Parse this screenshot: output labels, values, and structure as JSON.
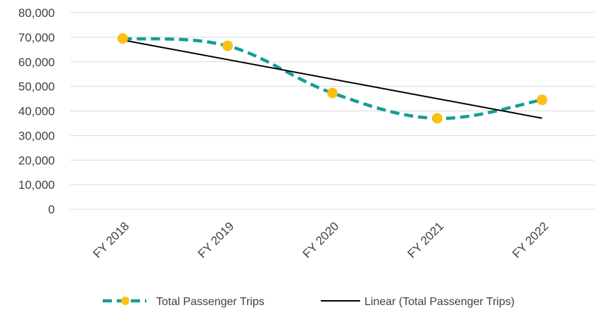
{
  "chart_data": {
    "type": "line",
    "categories": [
      "FY 2018",
      "FY 2019",
      "FY 2020",
      "FY 2021",
      "FY 2022"
    ],
    "series": [
      {
        "name": "Total Passenger Trips",
        "values": [
          69500,
          66500,
          47300,
          37000,
          44500
        ],
        "line_color": "#139e94",
        "marker_color": "#fbc012",
        "line_style": "dashed",
        "marker": "circle"
      }
    ],
    "trendline": {
      "name": "Linear (Total Passenger Trips)",
      "type": "linear",
      "of_series": "Total Passenger Trips",
      "color": "#000000"
    },
    "yticks": [
      "0",
      "10,000",
      "20,000",
      "30,000",
      "40,000",
      "50,000",
      "60,000",
      "70,000",
      "80,000"
    ],
    "ylim": [
      0,
      80000
    ],
    "grid": true,
    "legend": "bottom",
    "title": "",
    "xlabel": "",
    "ylabel": ""
  }
}
